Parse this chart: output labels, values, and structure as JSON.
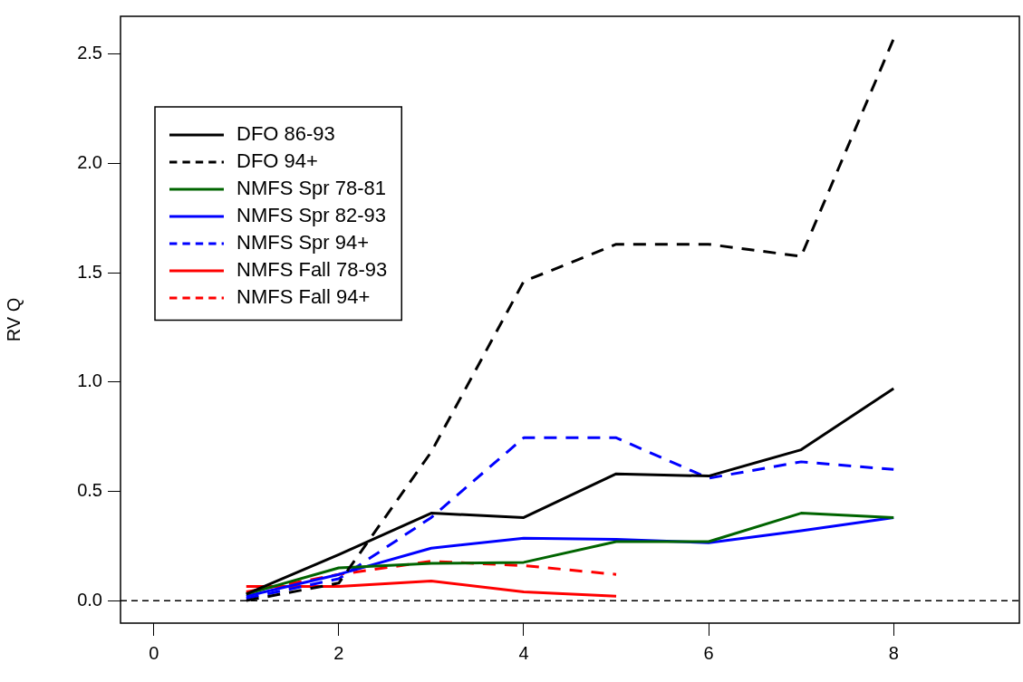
{
  "chart_data": {
    "type": "line",
    "ylabel": "RV Q",
    "x": [
      1,
      2,
      3,
      4,
      5,
      6,
      7,
      8
    ],
    "xlim": [
      -0.36,
      9.36
    ],
    "xticks": [
      0,
      2,
      4,
      6,
      8
    ],
    "ylim": [
      -0.103,
      2.673
    ],
    "yticks": [
      {
        "value": 0,
        "label": "0.0"
      },
      0.5,
      {
        "value": 1,
        "label": "1.0"
      },
      1.5,
      {
        "value": 2,
        "label": "2.0"
      },
      2.5
    ],
    "grid": false,
    "legend": "top left",
    "marker": "none",
    "ref_lines": [
      {
        "axis": "y",
        "value": 0,
        "color": "#000000",
        "line_style": "dashed"
      }
    ],
    "series": [
      {
        "name": "DFO 86-93",
        "color": "#000000",
        "line_style": "solid",
        "values": [
          0.03,
          0.21,
          0.4,
          0.38,
          0.58,
          0.57,
          0.69,
          0.97
        ]
      },
      {
        "name": "DFO 94+",
        "color": "#000000",
        "line_style": "dashed",
        "values": [
          0.0,
          0.08,
          0.68,
          1.46,
          1.63,
          1.63,
          1.575,
          2.57
        ]
      },
      {
        "name": "NMFS Spr 78-81",
        "color": "#006400",
        "line_style": "solid",
        "values": [
          0.03,
          0.15,
          0.17,
          0.175,
          0.27,
          0.27,
          0.4,
          0.38
        ]
      },
      {
        "name": "NMFS Spr 82-93",
        "color": "#0000ff",
        "line_style": "solid",
        "values": [
          0.02,
          0.12,
          0.24,
          0.285,
          0.28,
          0.265,
          0.32,
          0.38
        ]
      },
      {
        "name": "NMFS Spr 94+",
        "color": "#0000ff",
        "line_style": "dashed",
        "values": [
          0.01,
          0.1,
          0.38,
          0.745,
          0.745,
          0.56,
          0.635,
          0.6
        ]
      },
      {
        "name": "NMFS Fall 78-93",
        "color": "#ff0000",
        "line_style": "solid",
        "values": [
          0.065,
          0.065,
          0.09,
          0.04,
          0.02,
          null,
          null,
          null
        ]
      },
      {
        "name": "NMFS Fall 94+",
        "color": "#ff0000",
        "line_style": "dashed",
        "values": [
          0.04,
          0.12,
          0.18,
          0.16,
          0.12,
          null,
          null,
          null
        ]
      }
    ]
  }
}
